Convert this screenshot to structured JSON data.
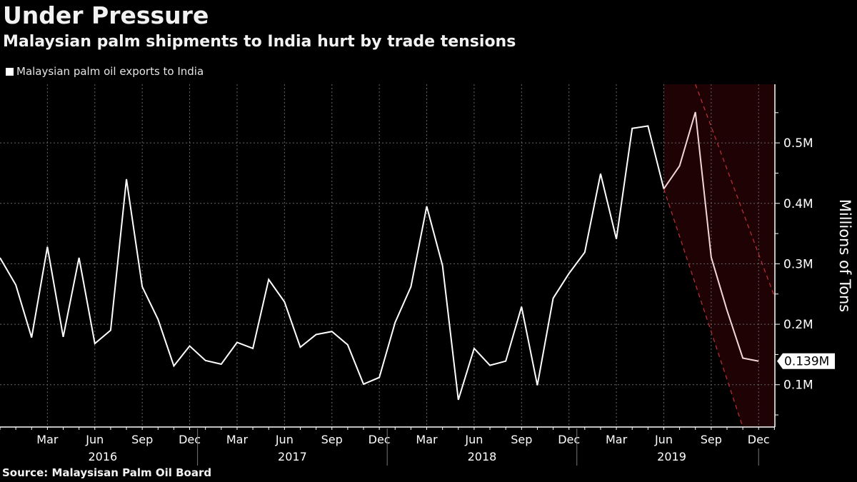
{
  "chart_data": {
    "type": "line",
    "title": "Under Pressure",
    "subtitle": "Malaysian palm shipments to India hurt by trade tensions",
    "ylabel": "Millions of Tons",
    "xlabel": "",
    "source": "Source: Malaysisan Palm Oil Board",
    "ylim": [
      0.03,
      0.597
    ],
    "xlim": [
      "2015-12",
      "2020-01"
    ],
    "grid": true,
    "legend_placement": "top-left",
    "y_ticks": [
      {
        "value": 0.1,
        "label": "0.1M"
      },
      {
        "value": 0.2,
        "label": "0.2M"
      },
      {
        "value": 0.3,
        "label": "0.3M"
      },
      {
        "value": 0.4,
        "label": "0.4M"
      },
      {
        "value": 0.5,
        "label": "0.5M"
      }
    ],
    "x_tick_labels": [
      {
        "month": "2016-03",
        "label": "Mar"
      },
      {
        "month": "2016-06",
        "label": "Jun"
      },
      {
        "month": "2016-09",
        "label": "Sep"
      },
      {
        "month": "2016-12",
        "label": "Dec"
      },
      {
        "month": "2017-03",
        "label": "Mar"
      },
      {
        "month": "2017-06",
        "label": "Jun"
      },
      {
        "month": "2017-09",
        "label": "Sep"
      },
      {
        "month": "2017-12",
        "label": "Dec"
      },
      {
        "month": "2018-03",
        "label": "Mar"
      },
      {
        "month": "2018-06",
        "label": "Jun"
      },
      {
        "month": "2018-09",
        "label": "Sep"
      },
      {
        "month": "2018-12",
        "label": "Dec"
      },
      {
        "month": "2019-03",
        "label": "Mar"
      },
      {
        "month": "2019-06",
        "label": "Jun"
      },
      {
        "month": "2019-09",
        "label": "Sep"
      },
      {
        "month": "2019-12",
        "label": "Dec"
      }
    ],
    "year_labels": [
      "2016",
      "2017",
      "2018",
      "2019"
    ],
    "series": [
      {
        "name": "Malaysian palm oil exports to India",
        "color": "#ffffff",
        "highlight_color": "#f4d6d6",
        "x": [
          "2015-12",
          "2016-01",
          "2016-02",
          "2016-03",
          "2016-04",
          "2016-05",
          "2016-06",
          "2016-07",
          "2016-08",
          "2016-09",
          "2016-10",
          "2016-11",
          "2016-12",
          "2017-01",
          "2017-02",
          "2017-03",
          "2017-04",
          "2017-05",
          "2017-06",
          "2017-07",
          "2017-08",
          "2017-09",
          "2017-10",
          "2017-11",
          "2017-12",
          "2018-01",
          "2018-02",
          "2018-03",
          "2018-04",
          "2018-05",
          "2018-06",
          "2018-07",
          "2018-08",
          "2018-09",
          "2018-10",
          "2018-11",
          "2018-12",
          "2019-01",
          "2019-02",
          "2019-03",
          "2019-04",
          "2019-05",
          "2019-06",
          "2019-07",
          "2019-08",
          "2019-09",
          "2019-10",
          "2019-11",
          "2019-12"
        ],
        "values": [
          0.31,
          0.265,
          0.178,
          0.328,
          0.179,
          0.31,
          0.168,
          0.19,
          0.44,
          0.262,
          0.208,
          0.131,
          0.164,
          0.14,
          0.134,
          0.17,
          0.16,
          0.274,
          0.237,
          0.162,
          0.183,
          0.188,
          0.166,
          0.101,
          0.112,
          0.203,
          0.262,
          0.395,
          0.297,
          0.075,
          0.16,
          0.132,
          0.139,
          0.229,
          0.099,
          0.243,
          0.284,
          0.319,
          0.449,
          0.341,
          0.524,
          0.528,
          0.424,
          0.462,
          0.551,
          0.311,
          0.223,
          0.144,
          0.139
        ]
      }
    ],
    "annotations": {
      "last_value_label": "0.139M",
      "downtrend_band": {
        "fill_color": "#1e0204",
        "line_color": "#c0303a",
        "starts": "2019-06",
        "upper_line": [
          {
            "x": "2019-08",
            "y": 0.597
          },
          {
            "x": "2020-01",
            "y": 0.246
          }
        ],
        "lower_line": [
          {
            "x": "2019-06",
            "y": 0.424
          },
          {
            "x": "2019-11",
            "y": 0.03
          }
        ]
      }
    }
  }
}
